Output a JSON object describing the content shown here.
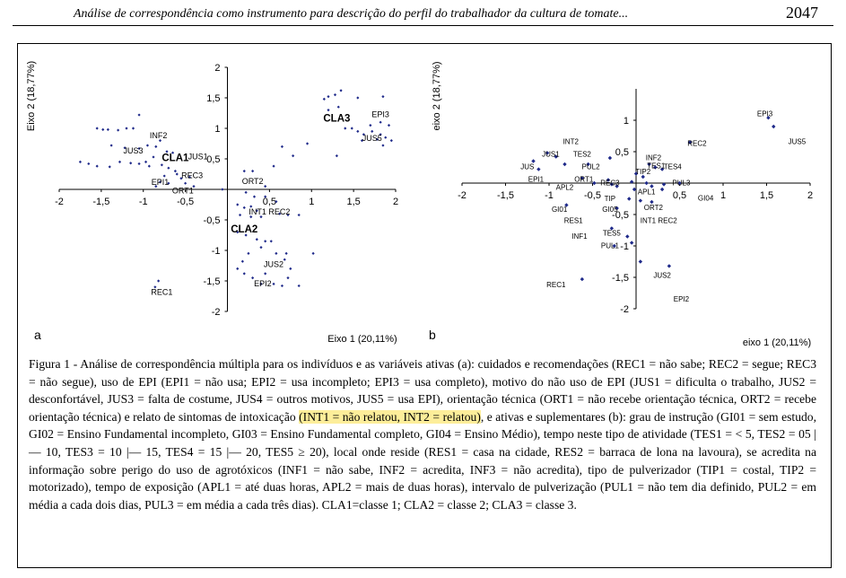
{
  "header": {
    "title": "Análise de correspondência como instrumento para descrição do perfil do trabalhador da cultura de tomate...",
    "page_number": "2047"
  },
  "chart_data": [
    {
      "type": "scatter",
      "panel_label": "a",
      "xlabel": "Eixo 1 (20,11%)",
      "ylabel": "Eixo 2 (18,77%)",
      "xlim": [
        -2,
        2
      ],
      "ylim": [
        -2,
        2
      ],
      "x_ticks": [
        "-2",
        "-1,5",
        "-1",
        "-0,5",
        "0,5",
        "1",
        "1,5",
        "2"
      ],
      "y_ticks": [
        "2",
        "1,5",
        "1",
        "0,5",
        "-0,5",
        "-1",
        "-1,5",
        "-2"
      ],
      "grid": false,
      "points": [
        [
          -1.48,
          0.98
        ],
        [
          -1.42,
          0.98
        ],
        [
          -1.55,
          1.0
        ],
        [
          -1.3,
          0.97
        ],
        [
          -1.2,
          1.0
        ],
        [
          -1.05,
          1.22
        ],
        [
          -1.12,
          1.0
        ],
        [
          -1.38,
          0.72
        ],
        [
          -1.22,
          0.68
        ],
        [
          -1.05,
          0.67
        ],
        [
          -0.95,
          0.72
        ],
        [
          -0.85,
          0.7
        ],
        [
          -0.8,
          0.8
        ],
        [
          -0.72,
          0.62
        ],
        [
          -0.65,
          0.6
        ],
        [
          -0.88,
          0.53
        ],
        [
          -0.93,
          0.38
        ],
        [
          -0.97,
          0.45
        ],
        [
          -1.05,
          0.42
        ],
        [
          -1.15,
          0.43
        ],
        [
          -1.28,
          0.45
        ],
        [
          -1.4,
          0.37
        ],
        [
          -1.55,
          0.38
        ],
        [
          -1.65,
          0.42
        ],
        [
          -1.75,
          0.45
        ],
        [
          -0.78,
          0.4
        ],
        [
          -0.7,
          0.35
        ],
        [
          -0.62,
          0.3
        ],
        [
          -0.75,
          0.22
        ],
        [
          -0.6,
          0.25
        ],
        [
          -0.8,
          0.12
        ],
        [
          -0.7,
          0.1
        ],
        [
          -0.55,
          0.18
        ],
        [
          -0.5,
          0.1
        ],
        [
          -0.45,
          0.2
        ],
        [
          -0.4,
          0.05
        ],
        [
          -0.85,
          0.05
        ],
        [
          0.2,
          0.3
        ],
        [
          0.3,
          0.3
        ],
        [
          0.45,
          0.05
        ],
        [
          0.22,
          -0.05
        ],
        [
          0.32,
          -0.12
        ],
        [
          0.45,
          -0.12
        ],
        [
          0.12,
          -0.25
        ],
        [
          0.2,
          -0.3
        ],
        [
          0.28,
          -0.28
        ],
        [
          0.35,
          -0.35
        ],
        [
          0.15,
          -0.42
        ],
        [
          0.28,
          -0.45
        ],
        [
          0.4,
          -0.45
        ],
        [
          0.62,
          -0.4
        ],
        [
          0.72,
          -0.42
        ],
        [
          0.85,
          -0.42
        ],
        [
          0.55,
          0.38
        ],
        [
          0.65,
          0.7
        ],
        [
          0.78,
          0.55
        ],
        [
          0.95,
          0.75
        ],
        [
          0.58,
          -0.2
        ],
        [
          0.12,
          -0.7
        ],
        [
          0.22,
          -0.75
        ],
        [
          0.35,
          -0.82
        ],
        [
          0.45,
          -0.85
        ],
        [
          0.52,
          -0.85
        ],
        [
          0.4,
          -0.95
        ],
        [
          0.25,
          -1.05
        ],
        [
          0.18,
          -1.18
        ],
        [
          0.12,
          -1.3
        ],
        [
          0.2,
          -1.38
        ],
        [
          0.3,
          -1.45
        ],
        [
          0.45,
          -1.38
        ],
        [
          0.58,
          -1.05
        ],
        [
          0.7,
          -1.05
        ],
        [
          0.68,
          -1.15
        ],
        [
          0.75,
          -1.3
        ],
        [
          0.72,
          -1.45
        ],
        [
          0.55,
          -1.55
        ],
        [
          0.65,
          -1.58
        ],
        [
          0.85,
          -1.58
        ],
        [
          1.02,
          -1.05
        ],
        [
          0.4,
          -1.55
        ],
        [
          1.15,
          1.48
        ],
        [
          1.2,
          1.52
        ],
        [
          1.28,
          1.55
        ],
        [
          1.35,
          1.62
        ],
        [
          1.2,
          1.3
        ],
        [
          1.32,
          1.35
        ],
        [
          1.55,
          1.5
        ],
        [
          1.85,
          1.52
        ],
        [
          1.4,
          1.0
        ],
        [
          1.48,
          1.0
        ],
        [
          1.55,
          0.95
        ],
        [
          1.62,
          0.9
        ],
        [
          1.72,
          0.95
        ],
        [
          1.82,
          0.9
        ],
        [
          1.88,
          0.85
        ],
        [
          1.95,
          0.8
        ],
        [
          1.6,
          0.8
        ],
        [
          1.78,
          0.82
        ],
        [
          1.7,
          1.05
        ],
        [
          1.82,
          1.1
        ],
        [
          1.92,
          1.05
        ],
        [
          1.85,
          0.72
        ],
        [
          1.3,
          0.55
        ],
        [
          -0.82,
          -1.5
        ],
        [
          -0.86,
          -1.6
        ],
        [
          -0.06,
          0.0
        ]
      ],
      "labels": [
        {
          "text": "INF2",
          "x": -0.82,
          "y": 0.9
        },
        {
          "text": "JUS3",
          "x": -1.12,
          "y": 0.65
        },
        {
          "text": "JUS1",
          "x": -0.35,
          "y": 0.55
        },
        {
          "text": "CLA1",
          "x": -0.62,
          "y": 0.52,
          "bold": true
        },
        {
          "text": "REC3",
          "x": -0.42,
          "y": 0.24
        },
        {
          "text": "EPI1",
          "x": -0.8,
          "y": 0.13
        },
        {
          "text": "ORT1",
          "x": -0.53,
          "y": -0.01
        },
        {
          "text": "ORT2",
          "x": 0.3,
          "y": 0.15
        },
        {
          "text": "INT1 REC2",
          "x": 0.5,
          "y": -0.35
        },
        {
          "text": "CLA2",
          "x": 0.2,
          "y": -0.65,
          "bold": true
        },
        {
          "text": "JUS2",
          "x": 0.55,
          "y": -1.21
        },
        {
          "text": "EPI2",
          "x": 0.42,
          "y": -1.53
        },
        {
          "text": "REC1",
          "x": -0.78,
          "y": -1.67
        },
        {
          "text": "CLA3",
          "x": 1.3,
          "y": 1.17,
          "bold": true
        },
        {
          "text": "EPI3",
          "x": 1.82,
          "y": 1.24
        },
        {
          "text": "JUS5",
          "x": 1.72,
          "y": 0.85
        }
      ]
    },
    {
      "type": "scatter",
      "panel_label": "b",
      "xlabel": "eixo 1 (20,11%)",
      "ylabel": "eixo 2 (18,77%)",
      "xlim": [
        -2,
        2
      ],
      "ylim": [
        -2,
        1.5
      ],
      "x_ticks": [
        "-2",
        "-1,5",
        "-1",
        "-0,5",
        "0,5",
        "1",
        "1,5",
        "2"
      ],
      "y_ticks": [
        "1",
        "0,5",
        "-0,5",
        "-1",
        "-1,5",
        "-2"
      ],
      "grid": false,
      "points": [
        [
          1.52,
          1.04
        ],
        [
          1.58,
          0.9
        ],
        [
          0.62,
          0.65
        ],
        [
          -1.02,
          0.48
        ],
        [
          -0.92,
          0.42
        ],
        [
          -1.18,
          0.35
        ],
        [
          -1.12,
          0.22
        ],
        [
          -0.82,
          0.3
        ],
        [
          -0.55,
          0.3
        ],
        [
          -0.3,
          0.4
        ],
        [
          0.15,
          0.3
        ],
        [
          0.22,
          0.25
        ],
        [
          0.3,
          0.22
        ],
        [
          0.08,
          0.1
        ],
        [
          0.0,
          0.15
        ],
        [
          -0.05,
          0.02
        ],
        [
          -0.02,
          -0.1
        ],
        [
          0.12,
          0.0
        ],
        [
          0.18,
          -0.05
        ],
        [
          0.32,
          -0.02
        ],
        [
          0.5,
          0.0
        ],
        [
          0.3,
          -0.1
        ],
        [
          -0.32,
          0.05
        ],
        [
          -0.28,
          -0.02
        ],
        [
          -0.62,
          0.08
        ],
        [
          -0.48,
          0.0
        ],
        [
          -0.22,
          -0.05
        ],
        [
          -0.08,
          -0.25
        ],
        [
          0.05,
          -0.28
        ],
        [
          0.18,
          -0.3
        ],
        [
          -0.8,
          -0.35
        ],
        [
          -0.22,
          -0.4
        ],
        [
          -0.28,
          -0.72
        ],
        [
          -0.05,
          -0.95
        ],
        [
          -0.1,
          -0.85
        ],
        [
          -0.25,
          -1.0
        ],
        [
          0.05,
          -1.25
        ],
        [
          0.38,
          -1.32
        ],
        [
          -0.62,
          -1.53
        ]
      ],
      "labels": [
        {
          "text": "EPI3",
          "x": 1.48,
          "y": 1.12
        },
        {
          "text": "JUS5",
          "x": 1.85,
          "y": 0.68
        },
        {
          "text": "REC2",
          "x": 0.7,
          "y": 0.65
        },
        {
          "text": "INT2",
          "x": -0.75,
          "y": 0.68
        },
        {
          "text": "JUS1",
          "x": -0.98,
          "y": 0.48
        },
        {
          "text": "TES2",
          "x": -0.62,
          "y": 0.48
        },
        {
          "text": "JUS",
          "x": -1.25,
          "y": 0.28
        },
        {
          "text": "PUL2",
          "x": -0.52,
          "y": 0.28
        },
        {
          "text": "INF2",
          "x": 0.2,
          "y": 0.42
        },
        {
          "text": "TES1",
          "x": 0.23,
          "y": 0.29
        },
        {
          "text": "TES4",
          "x": 0.42,
          "y": 0.28
        },
        {
          "text": "TIP2",
          "x": 0.08,
          "y": 0.2
        },
        {
          "text": "EPI1",
          "x": -1.15,
          "y": 0.08
        },
        {
          "text": "ORT1",
          "x": -0.6,
          "y": 0.08
        },
        {
          "text": "REC3",
          "x": -0.3,
          "y": 0.02
        },
        {
          "text": "PUL3",
          "x": 0.52,
          "y": 0.02
        },
        {
          "text": "APL2",
          "x": -0.82,
          "y": -0.05
        },
        {
          "text": "APL1",
          "x": 0.12,
          "y": -0.12
        },
        {
          "text": "TIP",
          "x": -0.3,
          "y": -0.23
        },
        {
          "text": "GI04",
          "x": 0.8,
          "y": -0.22
        },
        {
          "text": "ORT2",
          "x": 0.2,
          "y": -0.37
        },
        {
          "text": "GI01",
          "x": -0.88,
          "y": -0.4
        },
        {
          "text": "GI05",
          "x": -0.3,
          "y": -0.4
        },
        {
          "text": "RES1",
          "x": -0.72,
          "y": -0.58
        },
        {
          "text": "INT1 REC2",
          "x": 0.26,
          "y": -0.58
        },
        {
          "text": "TES5",
          "x": -0.28,
          "y": -0.78
        },
        {
          "text": "INF1",
          "x": -0.65,
          "y": -0.83
        },
        {
          "text": "PUL1",
          "x": -0.3,
          "y": -0.98
        },
        {
          "text": "JUS2",
          "x": 0.3,
          "y": -1.45
        },
        {
          "text": "EPI2",
          "x": 0.52,
          "y": -1.83
        },
        {
          "text": "REC1",
          "x": -0.92,
          "y": -1.6
        }
      ]
    }
  ],
  "caption": {
    "part1": "Figura 1 - Análise de correspondência múltipla para os indivíduos e as variáveis ativas (a): cuidados e recomendações (REC1 = não sabe; REC2 = segue; REC3 = não segue), uso de EPI (EPI1 = não usa; EPI2 = usa incompleto; EPI3 = usa completo), motivo do não uso de EPI (JUS1 = dificulta o trabalho, JUS2 = desconfortável, JUS3 = falta de costume, JUS4 = outros motivos, JUS5 = usa EPI), orientação técnica (ORT1 = não recebe orientação técnica, ORT2 = recebe orientação técnica) e relato de sintomas de intoxicação ",
    "highlight": "(INT1 = não relatou, INT2 = relatou)",
    "part2": ", e ativas e suplementares (b): grau de instrução (GI01 = sem estudo, GI02 = Ensino Fundamental incompleto, GI03 = Ensino Fundamental completo, GI04 = Ensino Médio), tempo neste tipo de atividade (TES1 = < 5, TES2 = 05 |— 10, TES3 = 10 |— 15, TES4 = 15 |— 20, TES5 ≥ 20), local onde reside (RES1 = casa na cidade, RES2 = barraca de lona na lavoura), se acredita na informação sobre perigo do uso de agrotóxicos (INF1 = não sabe, INF2 = acredita, INF3 = não acredita), tipo de pulverizador (TIP1 = costal, TIP2 = motorizado), tempo de exposição (APL1 = até duas horas, APL2 = mais de duas horas), intervalo de pulverização (PUL1 = não tem dia definido, PUL2 = em média a cada dois dias, PUL3 = em média a cada três dias). CLA1=classe 1; CLA2 = classe 2; CLA3 = classe 3."
  },
  "colors": {
    "point": "#1f2a8a",
    "axis": "#000000",
    "highlight": "#fdee9a"
  }
}
